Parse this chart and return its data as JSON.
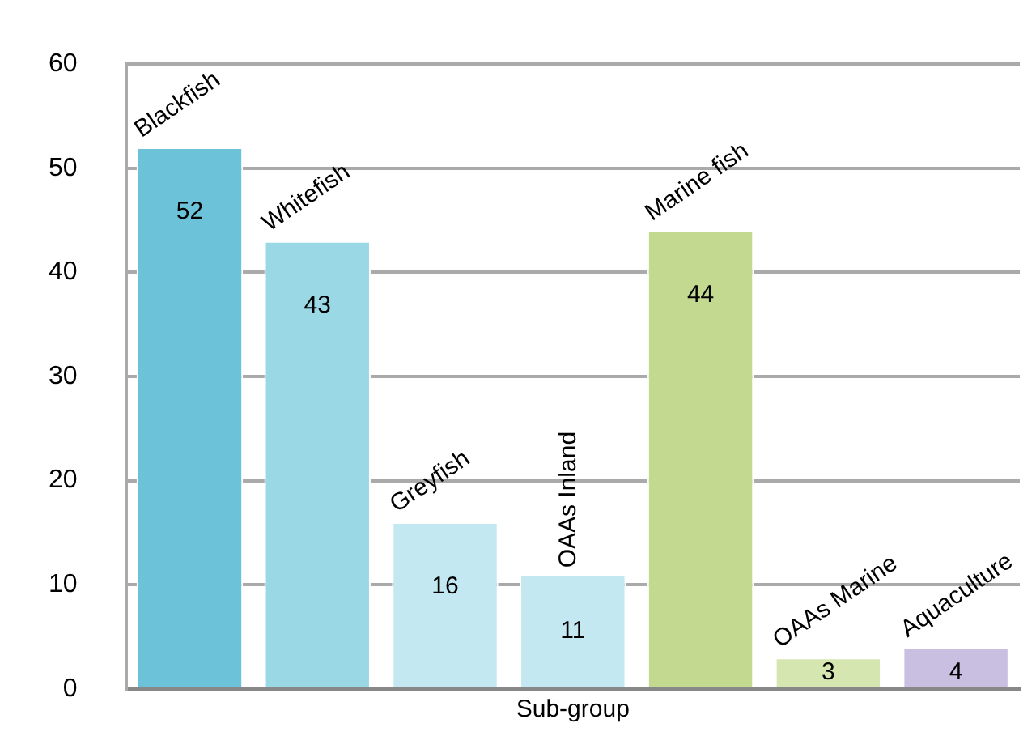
{
  "chart_data": {
    "type": "bar",
    "xlabel": "Sub-group",
    "categories": [
      "Blackfish",
      "Whitefish",
      "Greyfish",
      "OAAs Inland",
      "Marine fish",
      "OAAs Marine",
      "Aquaculture"
    ],
    "values": [
      52,
      43,
      16,
      11,
      44,
      3,
      4
    ],
    "colors": [
      "#6cc3d9",
      "#9ad8e6",
      "#c3e8f2",
      "#c3e8f2",
      "#c3d98f",
      "#d6e6b0",
      "#c9bfe0"
    ],
    "ylim": [
      0,
      60
    ],
    "yticks": [
      0,
      10,
      20,
      30,
      40,
      50,
      60
    ],
    "grid": "y",
    "legend": false,
    "data_labels": true,
    "tick_labels": "y"
  }
}
